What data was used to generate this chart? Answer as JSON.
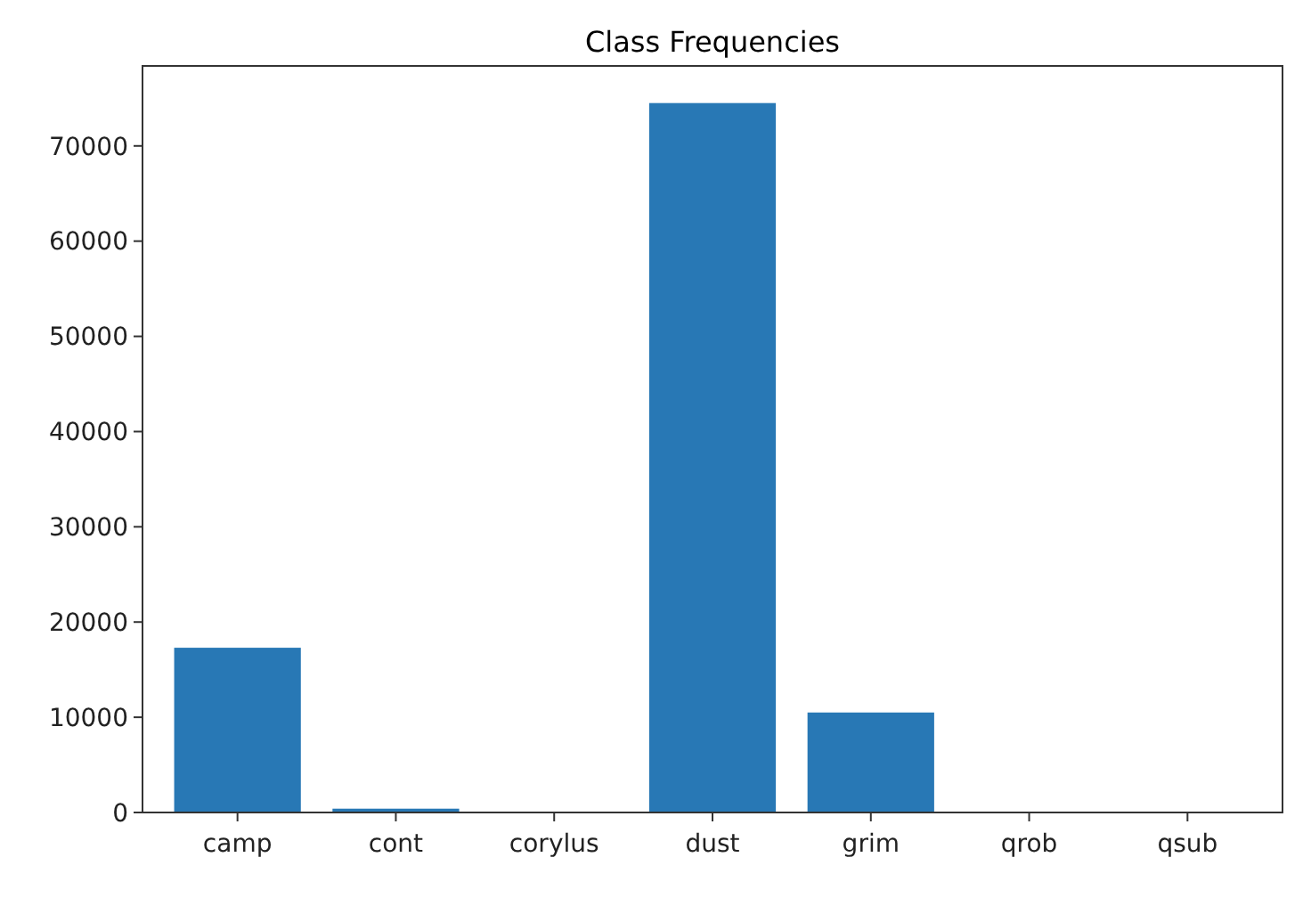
{
  "chart_data": {
    "type": "bar",
    "title": "Class Frequencies",
    "categories": [
      "camp",
      "cont",
      "corylus",
      "dust",
      "grim",
      "qrob",
      "qsub"
    ],
    "values": [
      17300,
      400,
      0,
      74500,
      10500,
      0,
      0
    ],
    "color": "#2878b5",
    "ylim": [
      0,
      78400
    ],
    "yticks": [
      0,
      10000,
      20000,
      30000,
      40000,
      50000,
      60000,
      70000
    ],
    "grid": false
  }
}
